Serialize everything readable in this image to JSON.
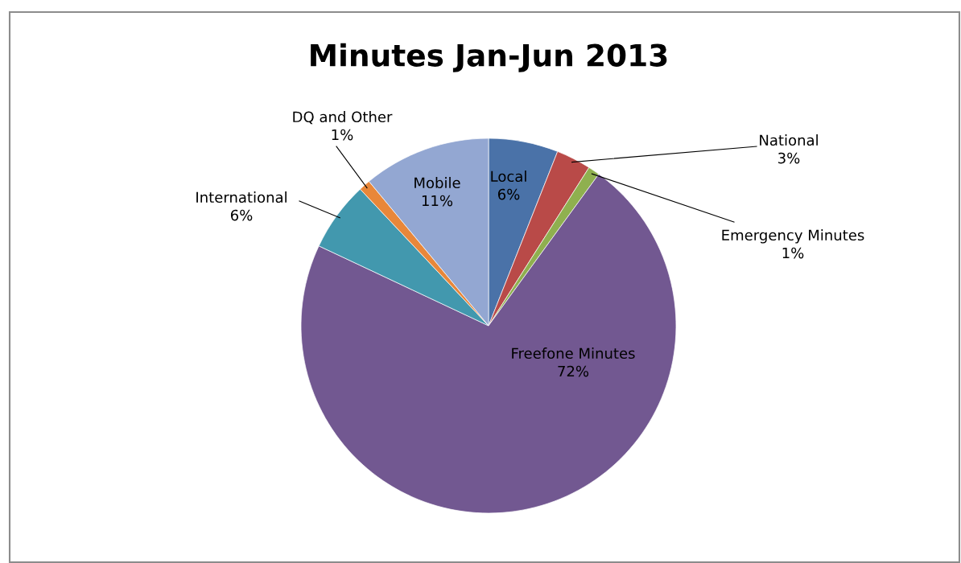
{
  "chart_data": {
    "type": "pie",
    "title": "Minutes Jan-Jun 2013",
    "categories": [
      "Local",
      "National",
      "Emergency Minutes",
      "Freefone Minutes",
      "International",
      "DQ and Other",
      "Mobile"
    ],
    "values": [
      6,
      3,
      1,
      72,
      6,
      1,
      11
    ],
    "colors": [
      "#4a72a8",
      "#b94a48",
      "#8fb04f",
      "#725891",
      "#4298ae",
      "#e8873a",
      "#93a7d2"
    ],
    "value_labels": [
      "6%",
      "3%",
      "1%",
      "72%",
      "6%",
      "1%",
      "11%"
    ],
    "legend": false
  }
}
